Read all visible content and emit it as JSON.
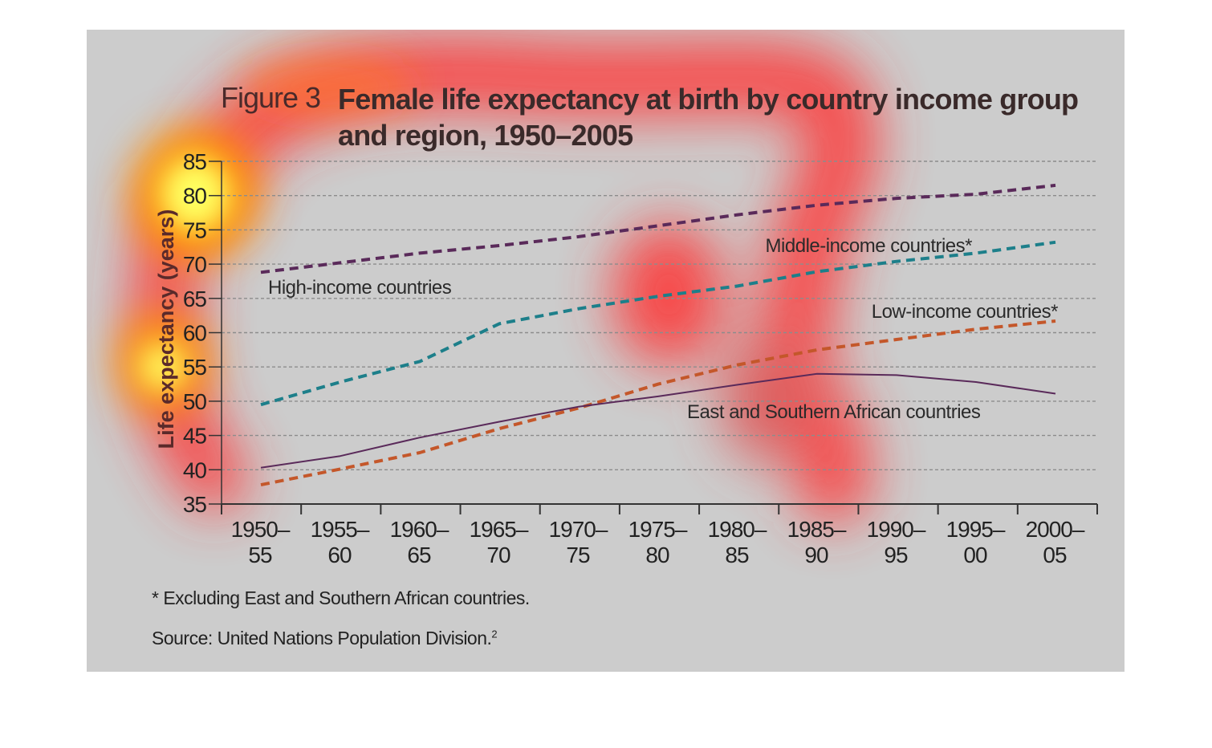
{
  "figure": {
    "label": "Figure 3",
    "title": "Female life expectancy at birth by country income group and region, 1950–2005",
    "footnote": "* Excluding East and Southern African countries.",
    "source": "Source: United Nations Population Division.",
    "source_ref": "2"
  },
  "chart_data": {
    "type": "line",
    "title": "Female life expectancy at birth by country income group and region, 1950–2005",
    "xlabel": "",
    "ylabel": "Life expectancy (years)",
    "ylim": [
      35,
      85
    ],
    "yticks": [
      35,
      40,
      45,
      50,
      55,
      60,
      65,
      70,
      75,
      80,
      85
    ],
    "grid": true,
    "categories": [
      [
        "1950–",
        "55"
      ],
      [
        "1955–",
        "60"
      ],
      [
        "1960–",
        "65"
      ],
      [
        "1965–",
        "70"
      ],
      [
        "1970–",
        "75"
      ],
      [
        "1975–",
        "80"
      ],
      [
        "1980–",
        "85"
      ],
      [
        "1985–",
        "90"
      ],
      [
        "1990–",
        "95"
      ],
      [
        "1995–",
        "00"
      ],
      [
        "2000–",
        "05"
      ]
    ],
    "series": [
      {
        "name": "High-income countries",
        "style": "dashed",
        "color": "#5a2a5a",
        "values": [
          68.8,
          70.2,
          71.6,
          72.7,
          74.0,
          75.6,
          77.2,
          78.6,
          79.6,
          80.2,
          81.5
        ]
      },
      {
        "name": "Middle-income countries*",
        "style": "dashed",
        "color": "#1d7f8a",
        "values": [
          49.5,
          52.8,
          55.8,
          61.3,
          63.5,
          65.3,
          66.8,
          68.9,
          70.4,
          71.6,
          73.2
        ]
      },
      {
        "name": "Low-income countries*",
        "style": "dashed",
        "color": "#c4572a",
        "values": [
          37.8,
          40.1,
          42.5,
          46.0,
          49.0,
          52.5,
          55.3,
          57.5,
          59.0,
          60.5,
          61.7
        ]
      },
      {
        "name": "East and Southern African countries",
        "style": "solid",
        "color": "#5a2a5a",
        "values": [
          40.3,
          42.0,
          44.7,
          47.0,
          49.2,
          50.7,
          52.4,
          54.0,
          53.8,
          52.8,
          51.1
        ]
      }
    ]
  },
  "heatmap_overlay": {
    "colors": [
      "#ff2020",
      "#ffaa00",
      "#ffff60"
    ]
  }
}
